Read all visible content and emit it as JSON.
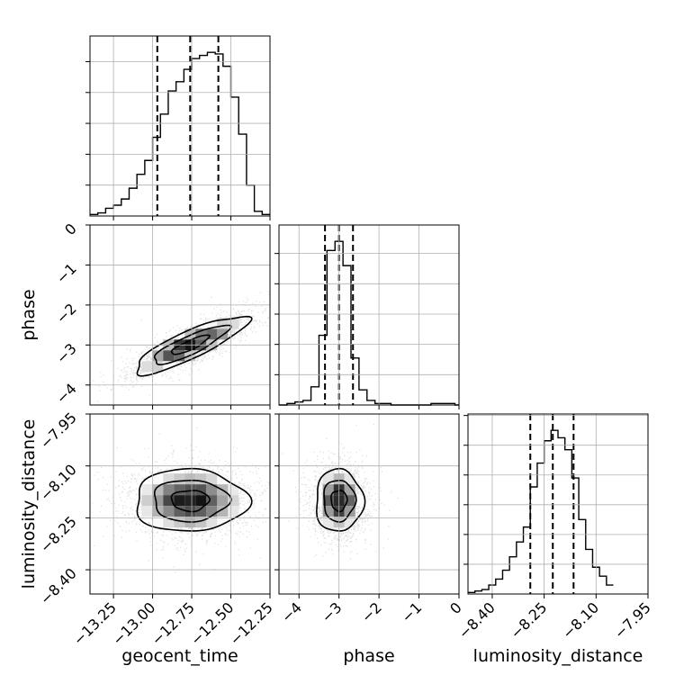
{
  "chart_data": {
    "type": "corner",
    "grid": true,
    "parameters": [
      "geocent_time",
      "phase",
      "luminosity_distance"
    ],
    "ranges": {
      "geocent_time": [
        -13.4,
        -12.25
      ],
      "phase": [
        -4.5,
        0
      ],
      "luminosity_distance": [
        -8.47,
        -7.95
      ]
    },
    "ticks": {
      "geocent_time": {
        "values": [
          -13.25,
          -13.0,
          -12.75,
          -12.5,
          -12.25
        ],
        "labels": [
          "−13.25",
          "−13.00",
          "−12.75",
          "−12.50",
          "−12.25"
        ]
      },
      "phase": {
        "values": [
          -4,
          -3,
          -2,
          -1,
          0
        ],
        "labels": [
          "−4",
          "−3",
          "−2",
          "−1",
          "0"
        ]
      },
      "luminosity_distance": {
        "values": [
          -8.4,
          -8.25,
          -8.1,
          -7.95
        ],
        "labels": [
          "−8.40",
          "−8.25",
          "−8.10",
          "−7.95"
        ]
      }
    },
    "quantiles": {
      "geocent_time": [
        -12.97,
        -12.76,
        -12.58
      ],
      "phase": [
        -3.35,
        -3.0,
        -2.65
      ],
      "luminosity_distance": [
        -8.29,
        -8.225,
        -8.165
      ]
    },
    "histograms": {
      "geocent_time": {
        "edges": [
          -13.4,
          -13.35,
          -13.3,
          -13.25,
          -13.2,
          -13.15,
          -13.1,
          -13.05,
          -13.0,
          -12.95,
          -12.9,
          -12.85,
          -12.8,
          -12.75,
          -12.7,
          -12.65,
          -12.6,
          -12.55,
          -12.5,
          -12.45,
          -12.4,
          -12.35,
          -12.3,
          -12.25
        ],
        "counts": [
          1,
          2,
          5,
          7,
          11,
          18,
          27,
          36,
          51,
          66,
          81,
          87,
          95,
          102,
          104,
          106,
          105,
          97,
          77,
          53,
          20,
          3,
          1
        ]
      },
      "phase": {
        "edges": [
          -4.5,
          -4.3,
          -4.1,
          -3.9,
          -3.7,
          -3.5,
          -3.3,
          -3.1,
          -2.9,
          -2.7,
          -2.5,
          -2.3,
          -2.1,
          -1.9,
          -1.7,
          -1.5,
          -1.3,
          -1.1,
          -0.9,
          -0.7,
          -0.5,
          -0.3,
          -0.1,
          0.0
        ],
        "counts": [
          0,
          1,
          2,
          3,
          12,
          46,
          102,
          108,
          92,
          31,
          10,
          3,
          1,
          1,
          0,
          0,
          0,
          0,
          0,
          1,
          1,
          1,
          0
        ]
      },
      "luminosity_distance": {
        "edges": [
          -8.47,
          -8.45,
          -8.43,
          -8.41,
          -8.39,
          -8.37,
          -8.35,
          -8.33,
          -8.31,
          -8.29,
          -8.27,
          -8.25,
          -8.23,
          -8.21,
          -8.19,
          -8.17,
          -8.15,
          -8.13,
          -8.11,
          -8.09,
          -8.07,
          -8.05
        ],
        "counts": [
          1,
          2,
          3,
          6,
          10,
          16,
          25,
          35,
          45,
          72,
          88,
          103,
          110,
          105,
          97,
          78,
          50,
          30,
          18,
          12,
          6
        ]
      }
    },
    "density": {
      "geocent_time_phase": {
        "center": [
          -12.76,
          -3.0
        ],
        "sd": [
          0.2,
          0.4
        ],
        "correlation": 0.85
      },
      "geocent_time_luminosity_distance": {
        "center": [
          -12.76,
          -8.2
        ],
        "sd": [
          0.2,
          0.05
        ],
        "correlation": 0.0
      },
      "phase_luminosity_distance": {
        "center": [
          -3.0,
          -8.2
        ],
        "sd": [
          0.33,
          0.05
        ],
        "correlation": 0.0
      }
    }
  }
}
